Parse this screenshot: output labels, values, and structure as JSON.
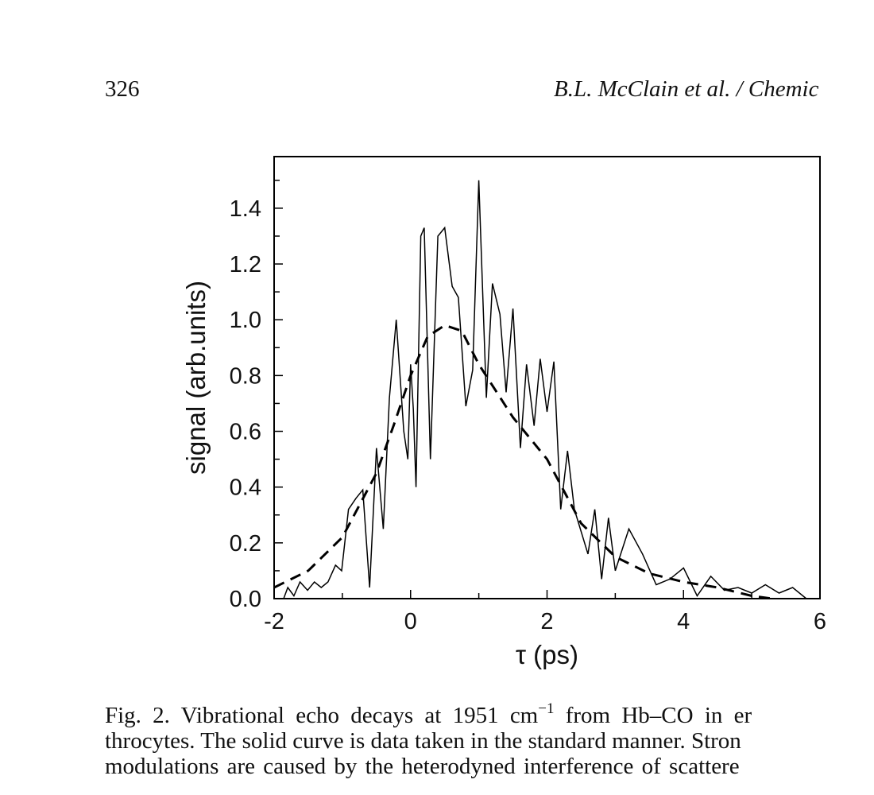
{
  "header": {
    "page_number": "326",
    "running_title": "B.L. McClain et al. / Chemic"
  },
  "chart_data": {
    "type": "line",
    "ylabel": "signal (arb.units)",
    "xlabel": "τ (ps)",
    "xlim": [
      -2,
      6
    ],
    "ylim": [
      0,
      1.585
    ],
    "xticks": [
      -2,
      0,
      2,
      4,
      6
    ],
    "yticks": [
      {
        "value": 0,
        "label": "0.0"
      },
      {
        "value": 0.2,
        "label": "0.2"
      },
      {
        "value": 0.4,
        "label": "0.4"
      },
      {
        "value": 0.6,
        "label": "0.6"
      },
      {
        "value": 0.8,
        "label": "0.8"
      },
      {
        "value": 1,
        "label": "1.0"
      },
      {
        "value": 1.2,
        "label": "1.2"
      },
      {
        "value": 1.4,
        "label": "1.4"
      }
    ],
    "xminorticks": [
      -1,
      1,
      3,
      5
    ],
    "yminorticks": [
      0.1,
      0.3,
      0.5,
      0.7,
      0.9,
      1.1,
      1.3,
      1.5
    ],
    "series": [
      {
        "style": "solid",
        "color": "#000000",
        "x": [
          -1.86,
          -1.8,
          -1.71,
          -1.62,
          -1.51,
          -1.41,
          -1.31,
          -1.21,
          -1.1,
          -1.01,
          -0.91,
          -0.8,
          -0.7,
          -0.6,
          -0.5,
          -0.4,
          -0.31,
          -0.21,
          -0.1,
          -0.04,
          0.0,
          0.04,
          0.08,
          0.15,
          0.2,
          0.29,
          0.4,
          0.5,
          0.61,
          0.7,
          0.81,
          0.91,
          1.0,
          1.11,
          1.2,
          1.31,
          1.4,
          1.5,
          1.61,
          1.7,
          1.81,
          1.9,
          2.0,
          2.1,
          2.2,
          2.3,
          2.4,
          2.6,
          2.7,
          2.8,
          2.9,
          3.0,
          3.2,
          3.4,
          3.6,
          3.8,
          4.0,
          4.2,
          4.4,
          4.6,
          4.8,
          5.0,
          5.2,
          5.4,
          5.6,
          5.8
        ],
        "values": [
          0.0,
          0.04,
          0.01,
          0.06,
          0.03,
          0.06,
          0.04,
          0.06,
          0.12,
          0.1,
          0.32,
          0.36,
          0.39,
          0.04,
          0.54,
          0.25,
          0.72,
          1.0,
          0.6,
          0.5,
          0.84,
          0.68,
          0.4,
          1.3,
          1.33,
          0.5,
          1.3,
          1.33,
          1.12,
          1.08,
          0.69,
          0.82,
          1.5,
          0.72,
          1.13,
          1.02,
          0.74,
          1.04,
          0.54,
          0.84,
          0.62,
          0.86,
          0.67,
          0.85,
          0.32,
          0.53,
          0.32,
          0.16,
          0.32,
          0.07,
          0.29,
          0.1,
          0.25,
          0.16,
          0.05,
          0.07,
          0.11,
          0.01,
          0.08,
          0.03,
          0.04,
          0.02,
          0.05,
          0.02,
          0.04,
          0.0
        ]
      },
      {
        "style": "dashed",
        "color": "#000000",
        "x": [
          -2,
          -1.5,
          -1,
          -0.5,
          -0.25,
          0,
          0.25,
          0.5,
          0.75,
          1,
          1.5,
          2,
          2.5,
          3,
          3.5,
          4,
          4.5,
          5,
          5.3
        ],
        "values": [
          0.04,
          0.1,
          0.22,
          0.45,
          0.62,
          0.8,
          0.94,
          0.98,
          0.96,
          0.84,
          0.65,
          0.5,
          0.27,
          0.15,
          0.09,
          0.06,
          0.04,
          0.01,
          0.0
        ]
      }
    ]
  },
  "caption": {
    "lines": [
      [
        "Fig. 2. Vibrational echo decays at 1951 cm",
        "−1",
        " from Hb–CO in er"
      ],
      [
        "throcytes. The solid curve is data taken in the standard manner. Stron"
      ],
      [
        "modulations are caused by the heterodyned interference of scattere"
      ]
    ]
  }
}
